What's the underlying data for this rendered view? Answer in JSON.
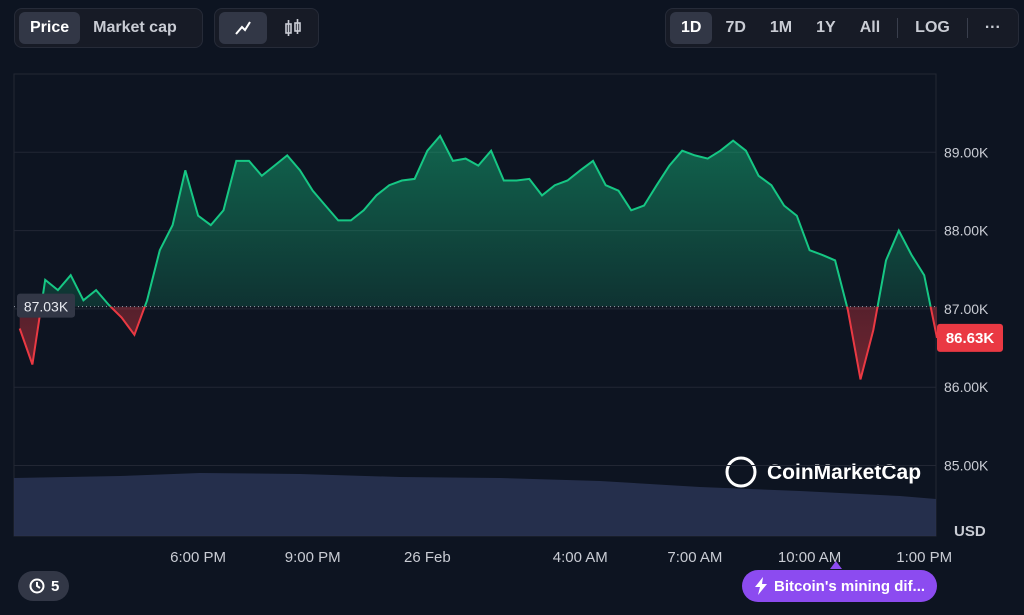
{
  "toolbar": {
    "data_tabs": [
      "Price",
      "Market cap"
    ],
    "ranges": [
      "1D",
      "7D",
      "1M",
      "1Y",
      "All"
    ],
    "log": "LOG",
    "more": "···"
  },
  "chart_data": {
    "type": "line",
    "categories": [
      null,
      null,
      null,
      null,
      null,
      null,
      null,
      null,
      null,
      null,
      null,
      null,
      null,
      null,
      "6:00 PM",
      null,
      null,
      null,
      null,
      null,
      null,
      null,
      null,
      "9:00 PM",
      null,
      null,
      null,
      null,
      null,
      null,
      null,
      null,
      "26 Feb",
      null,
      null,
      null,
      null,
      null,
      null,
      null,
      null,
      null,
      null,
      null,
      "4:00 AM",
      null,
      null,
      null,
      null,
      null,
      null,
      null,
      null,
      "7:00 AM",
      null,
      null,
      null,
      null,
      null,
      null,
      null,
      null,
      "10:00 AM",
      null,
      null,
      null,
      null,
      null,
      null,
      null,
      null,
      "1:00 PM",
      null
    ],
    "values": [
      86.75,
      86.29,
      87.37,
      87.24,
      87.43,
      87.11,
      87.24,
      87.05,
      86.89,
      86.67,
      87.11,
      87.75,
      88.07,
      88.77,
      88.19,
      88.07,
      88.26,
      88.89,
      88.89,
      88.7,
      88.83,
      88.96,
      88.77,
      88.51,
      88.32,
      88.13,
      88.13,
      88.26,
      88.45,
      88.58,
      88.64,
      88.66,
      89.02,
      89.21,
      88.89,
      88.92,
      88.83,
      89.02,
      88.64,
      88.64,
      88.66,
      88.45,
      88.58,
      88.64,
      88.77,
      88.89,
      88.58,
      88.51,
      88.26,
      88.32,
      88.58,
      88.83,
      89.02,
      88.96,
      88.92,
      89.02,
      89.15,
      89.02,
      88.7,
      88.58,
      88.32,
      88.19,
      87.75,
      87.69,
      87.62,
      86.99,
      86.1,
      86.73,
      87.62,
      88.0,
      87.69,
      87.43,
      86.63
    ],
    "value_labels": [
      null,
      null,
      null,
      null,
      null,
      null,
      null,
      null,
      null,
      null,
      null,
      null,
      null,
      null,
      null,
      null,
      null,
      null,
      null,
      null,
      null,
      null,
      null,
      null,
      null,
      null,
      null,
      null,
      null,
      null,
      null,
      null,
      null,
      null,
      null,
      null,
      null,
      null,
      null,
      null,
      null,
      null,
      null,
      null,
      null,
      null,
      null,
      null,
      null,
      null,
      null,
      null,
      null,
      null,
      null,
      null,
      null,
      null,
      null,
      null,
      null,
      null,
      null,
      null,
      null,
      null,
      null,
      null,
      null,
      null,
      null,
      null,
      "86.63K"
    ],
    "reference": {
      "value": 87.03,
      "label": "87.03K"
    },
    "colors": {
      "up": "#16c784",
      "down": "#ea3943"
    },
    "ylim": [
      84.1,
      90
    ],
    "yticks": [
      {
        "value": 85,
        "label": "85.00K"
      },
      {
        "value": 86,
        "label": "86.00K"
      },
      {
        "value": 87,
        "label": "87.00K"
      },
      {
        "value": 88,
        "label": "88.00K"
      },
      {
        "value": 89,
        "label": "89.00K"
      }
    ],
    "unit": "USD",
    "grid": true
  },
  "watermark": "CoinMarketCap",
  "footer": {
    "history_count": "5",
    "news": "Bitcoin's mining dif..."
  }
}
